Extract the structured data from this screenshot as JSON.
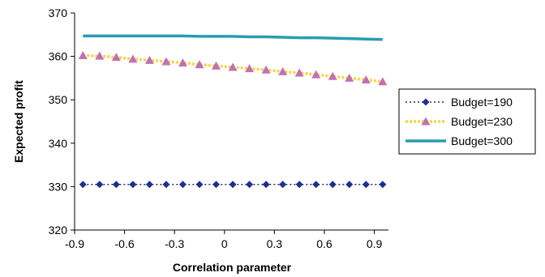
{
  "chart_data": {
    "type": "line",
    "title": "",
    "xlabel": "Correlation parameter",
    "ylabel": "Expected profit",
    "xlim": [
      -0.9,
      0.985
    ],
    "ylim": [
      320,
      370
    ],
    "x_ticks": [
      "-0.9",
      "-0.6",
      "-0.3",
      "0",
      "0.3",
      "0.6",
      "0.9"
    ],
    "y_ticks": [
      "320",
      "330",
      "340",
      "350",
      "360",
      "370"
    ],
    "grid": false,
    "legend_position": "right",
    "x": [
      -0.85,
      -0.75,
      -0.65,
      -0.55,
      -0.45,
      -0.35,
      -0.25,
      -0.15,
      -0.05,
      0.05,
      0.15,
      0.25,
      0.35,
      0.45,
      0.55,
      0.65,
      0.75,
      0.85,
      0.95
    ],
    "series": [
      {
        "name": "Budget=190",
        "color": "#1f2f8f",
        "style": "dotted",
        "marker": "diamond",
        "values": [
          330.5,
          330.5,
          330.5,
          330.5,
          330.5,
          330.5,
          330.5,
          330.5,
          330.5,
          330.5,
          330.5,
          330.5,
          330.5,
          330.5,
          330.5,
          330.5,
          330.5,
          330.5,
          330.5
        ]
      },
      {
        "name": "Budget=230",
        "color": "#f5d64a",
        "marker_color": "#c36fb5",
        "style": "dashed",
        "marker": "triangle",
        "values": [
          360.2,
          360.1,
          359.8,
          359.4,
          359.1,
          358.8,
          358.5,
          358.1,
          357.8,
          357.5,
          357.2,
          356.9,
          356.5,
          356.2,
          355.8,
          355.4,
          355.0,
          354.6,
          354.2
        ]
      },
      {
        "name": "Budget=300",
        "color": "#2b9bb3",
        "style": "solid",
        "marker": "none",
        "values": [
          364.7,
          364.7,
          364.7,
          364.7,
          364.7,
          364.7,
          364.7,
          364.6,
          364.6,
          364.6,
          364.5,
          364.5,
          364.4,
          364.3,
          364.3,
          364.2,
          364.1,
          364.0,
          363.9
        ]
      }
    ]
  }
}
